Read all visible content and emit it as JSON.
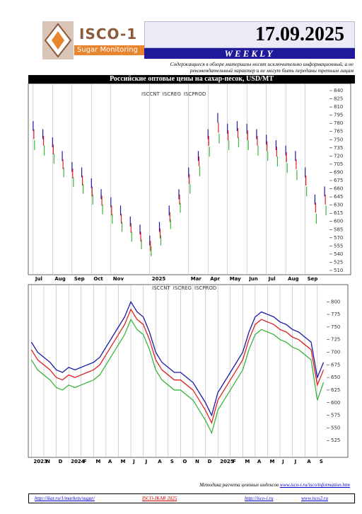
{
  "header": {
    "brand": "ISCO-1",
    "tagline": "Sugar Monitoring",
    "date": "17.09.2025",
    "edition": "WEEKLY",
    "disclaimer": "Содержащиеся в обзоре материалы носят исключительно информационный, а не рекомендательный характер и не могут быть переданы третьим лицам",
    "section_title": "Российские оптовые цены на сахар-песок, USD/MT"
  },
  "chart_data": [
    {
      "type": "tick",
      "categories": [
        "Jul",
        null,
        "Aug",
        null,
        "Sep",
        null,
        "Oct",
        null,
        "Nov",
        null,
        null,
        null,
        "2025",
        null,
        null,
        null,
        "Mar",
        null,
        "Apr",
        null,
        "May",
        null,
        "Jun",
        null,
        "Jul",
        null,
        "Aug",
        null,
        "Sep",
        null,
        null
      ],
      "series": [
        {
          "name": "ISCCNT",
          "color": "#1a1aa8",
          "values": [
            775,
            760,
            745,
            720,
            700,
            690,
            670,
            650,
            635,
            620,
            600,
            585,
            565,
            590,
            620,
            650,
            690,
            720,
            760,
            790,
            770,
            775,
            770,
            760,
            750,
            740,
            730,
            720,
            690,
            640,
            655
          ]
        },
        {
          "name": "ISCREG",
          "color": "#e02020",
          "values": [
            760,
            748,
            732,
            705,
            688,
            675,
            655,
            638,
            620,
            605,
            588,
            572,
            555,
            578,
            608,
            640,
            678,
            710,
            748,
            772,
            758,
            762,
            758,
            748,
            738,
            728,
            718,
            705,
            675,
            625,
            640
          ]
        },
        {
          "name": "ISCPROD",
          "color": "#3cb43c",
          "values": [
            740,
            730,
            715,
            690,
            672,
            660,
            640,
            622,
            605,
            590,
            572,
            558,
            545,
            565,
            595,
            625,
            660,
            692,
            728,
            752,
            740,
            745,
            740,
            730,
            720,
            710,
            698,
            685,
            655,
            605,
            620
          ]
        }
      ],
      "ylim": [
        510,
        840
      ],
      "yticks": [
        840,
        825,
        810,
        795,
        780,
        765,
        750,
        735,
        720,
        705,
        690,
        675,
        660,
        645,
        630,
        615,
        600,
        585,
        570,
        555,
        540,
        525,
        510
      ],
      "grid": true
    },
    {
      "type": "line",
      "categories": [
        "2023",
        null,
        "N",
        null,
        "D",
        null,
        "2024",
        null,
        "F",
        null,
        "M",
        null,
        "A",
        null,
        "M",
        null,
        "J",
        null,
        "J",
        null,
        "A",
        null,
        "S",
        null,
        "O",
        null,
        "N",
        null,
        "D",
        null,
        "2025",
        null,
        "F",
        null,
        "M",
        null,
        "A",
        null,
        "M",
        null,
        "J",
        null,
        "J",
        null,
        "A",
        null,
        "S",
        null
      ],
      "series": [
        {
          "name": "ISCCNT",
          "color": "#1a1aa8",
          "values": [
            720,
            700,
            690,
            680,
            665,
            660,
            670,
            665,
            670,
            675,
            680,
            690,
            710,
            730,
            750,
            770,
            800,
            780,
            770,
            740,
            700,
            680,
            670,
            660,
            660,
            650,
            640,
            620,
            600,
            575,
            620,
            640,
            660,
            680,
            700,
            740,
            770,
            780,
            775,
            770,
            760,
            755,
            745,
            740,
            730,
            720,
            650,
            680
          ]
        },
        {
          "name": "ISCREG",
          "color": "#e02020",
          "values": [
            705,
            685,
            675,
            665,
            650,
            645,
            655,
            650,
            655,
            660,
            665,
            675,
            695,
            715,
            735,
            755,
            785,
            765,
            755,
            725,
            685,
            665,
            655,
            645,
            645,
            635,
            625,
            605,
            585,
            560,
            605,
            625,
            645,
            665,
            685,
            725,
            755,
            765,
            760,
            755,
            745,
            740,
            730,
            725,
            715,
            705,
            635,
            665
          ]
        },
        {
          "name": "ISCPROD",
          "color": "#3cb43c",
          "values": [
            685,
            665,
            655,
            645,
            630,
            625,
            635,
            630,
            635,
            640,
            645,
            655,
            675,
            695,
            715,
            735,
            765,
            745,
            735,
            705,
            665,
            645,
            635,
            625,
            625,
            615,
            605,
            585,
            565,
            540,
            585,
            605,
            625,
            645,
            665,
            705,
            735,
            745,
            740,
            735,
            725,
            720,
            710,
            705,
            695,
            685,
            605,
            640
          ]
        }
      ],
      "ylim": [
        500,
        820
      ],
      "yticks": [
        800,
        775,
        750,
        725,
        700,
        675,
        650,
        625,
        600,
        575,
        550,
        525
      ],
      "grid": true
    }
  ],
  "footer": {
    "method_label": "Методика расчета ценовых индексов",
    "method_link": "www.isco-i.ru/isco/information.htm",
    "links": [
      "http://ikar.ru/1/markets/sugar/",
      "ISCO-IKAR 2025",
      "http://isco-i.ru",
      "www.isco2.ru"
    ]
  }
}
